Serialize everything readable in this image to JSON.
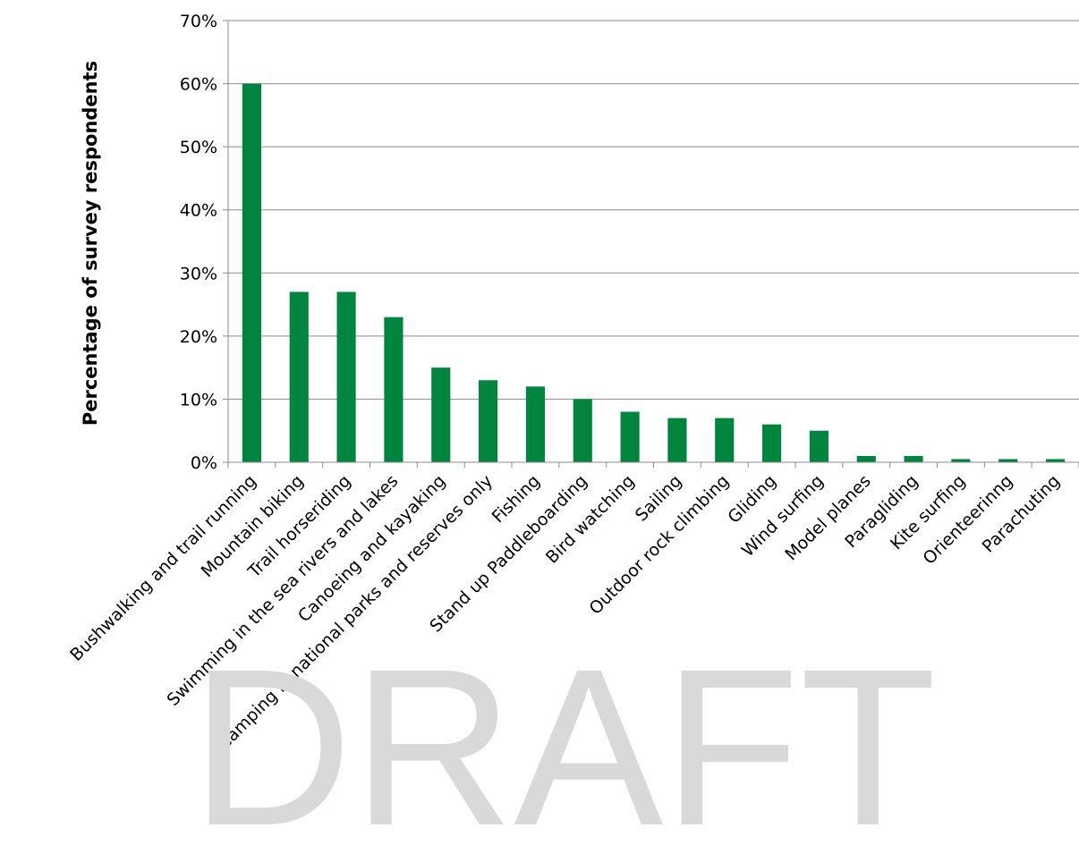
{
  "chart_data": {
    "type": "bar",
    "ylabel": "Percentage of survey respondents",
    "xlabel": "",
    "ylim": [
      0,
      70
    ],
    "y_ticks": [
      "0%",
      "10%",
      "20%",
      "30%",
      "40%",
      "50%",
      "60%",
      "70%"
    ],
    "y_tick_values": [
      0,
      10,
      20,
      30,
      40,
      50,
      60,
      70
    ],
    "grid": true,
    "bar_color": "#00853f",
    "categories": [
      "Bushwalking and trail running",
      "Mountain biking",
      "Trail horseriding",
      "Swimming in the sea rivers and lakes",
      "Canoeing and kayaking",
      "Camping in national parks and reserves only",
      "Fishing",
      "Stand up Paddleboarding",
      "Bird watching",
      "Sailing",
      "Outdoor rock climbing",
      "Gliding",
      "Wind surfing",
      "Model planes",
      "Paragliding",
      "Kite surfing",
      "Orienteerinng",
      "Parachuting"
    ],
    "values": [
      60,
      27,
      27,
      23,
      15,
      13,
      12,
      10,
      8,
      7,
      7,
      6,
      5,
      1,
      1,
      0.5,
      0.5,
      0.5
    ]
  },
  "watermark": "DRAFT"
}
